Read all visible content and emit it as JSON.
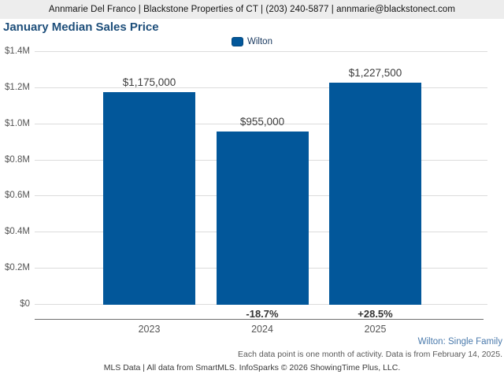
{
  "header": {
    "contact_line": "Annmarie Del Franco | Blackstone Properties of CT | (203) 240-5877 | annmarie@blackstonect.com"
  },
  "title": "January Median Sales Price",
  "legend": {
    "label": "Wilton",
    "color": "#02579A"
  },
  "chart_data": {
    "type": "bar",
    "title": "January Median Sales Price",
    "categories": [
      "2023",
      "2024",
      "2025"
    ],
    "series": [
      {
        "name": "Wilton",
        "values": [
          1175000,
          955000,
          1227500
        ]
      }
    ],
    "value_labels": [
      "$1,175,000",
      "$955,000",
      "$1,227,500"
    ],
    "pct_change_labels": [
      "",
      "-18.7%",
      "+28.5%"
    ],
    "ylim": [
      0,
      1400000
    ],
    "ytick_labels": [
      "$1.4M",
      "$1.2M",
      "$1.0M",
      "$0.8M",
      "$0.6M",
      "$0.4M",
      "$0.2M",
      "$0"
    ],
    "grid": true,
    "legend_position": "top",
    "bar_color": "#02579A"
  },
  "footer": {
    "context_label": "Wilton: Single Family",
    "data_note": "Each data point is one month of activity. Data is from February 14, 2025.",
    "attribution": "MLS Data | All data from SmartMLS. InfoSparks © 2026 ShowingTime Plus, LLC."
  }
}
